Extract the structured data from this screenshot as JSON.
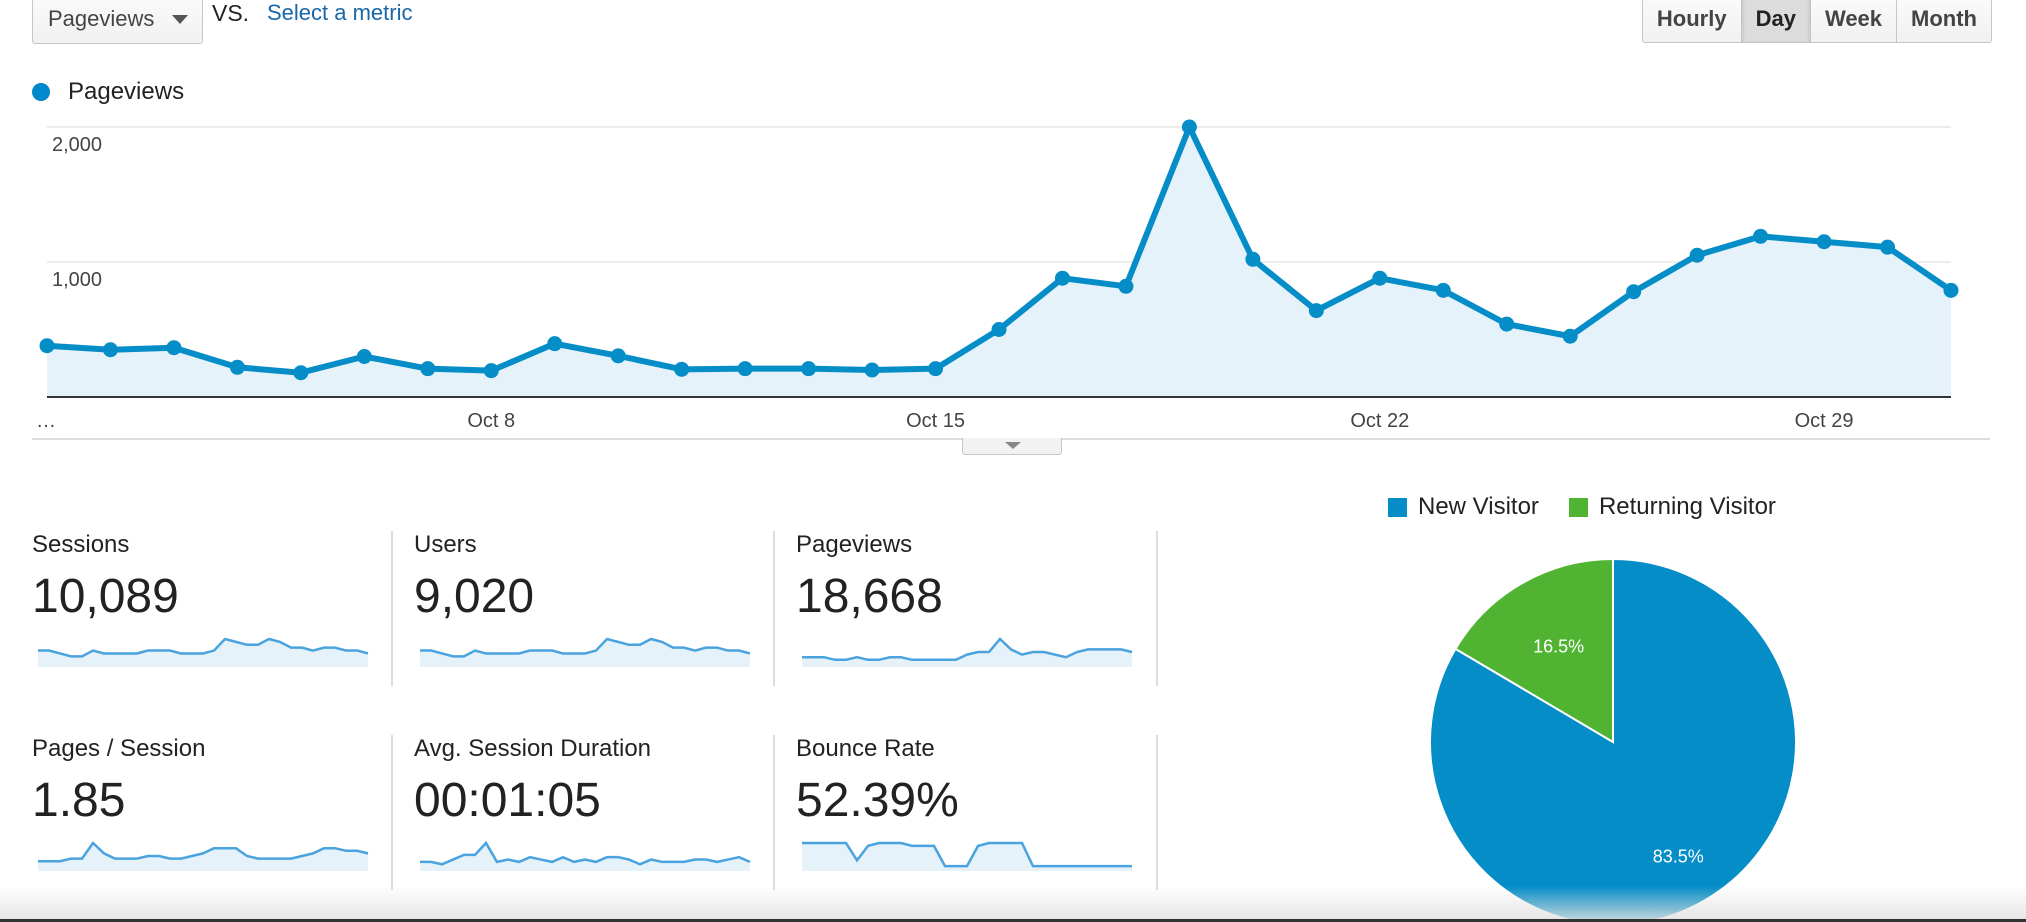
{
  "controls": {
    "metric_select": "Pageviews",
    "vs_label": "VS.",
    "select_metric_link": "Select a metric",
    "ranges": [
      "Hourly",
      "Day",
      "Week",
      "Month"
    ],
    "active_range": "Day"
  },
  "chart_data": {
    "type": "area",
    "series": [
      {
        "name": "Pageviews",
        "values": [
          380,
          350,
          365,
          220,
          180,
          300,
          210,
          195,
          395,
          305,
          205,
          210,
          210,
          200,
          210,
          500,
          880,
          820,
          2000,
          1020,
          640,
          880,
          790,
          540,
          450,
          780,
          1050,
          1190,
          1150,
          1110,
          790
        ]
      }
    ],
    "x_tick_labels": [
      "…",
      "Oct 8",
      "Oct 15",
      "Oct 22",
      "Oct 29"
    ],
    "y_tick_labels": [
      "2,000",
      "1,000"
    ],
    "y_ticks": [
      2000,
      1000
    ],
    "ylim": [
      0,
      2000
    ],
    "grid": true,
    "color": "#058dc7",
    "fill": "#e5f2fa"
  },
  "legend": {
    "main_series": "Pageviews"
  },
  "metrics": [
    {
      "label": "Sessions",
      "value": "10,089",
      "spark": [
        5,
        5,
        4,
        3,
        3,
        5,
        4,
        4,
        4,
        4,
        5,
        5,
        5,
        4,
        4,
        4,
        5,
        9,
        8,
        7,
        7,
        9,
        8,
        6,
        6,
        5,
        6,
        6,
        5,
        5,
        4
      ]
    },
    {
      "label": "Users",
      "value": "9,020",
      "spark": [
        5,
        5,
        4,
        3,
        3,
        5,
        4,
        4,
        4,
        4,
        5,
        5,
        5,
        4,
        4,
        4,
        5,
        9,
        8,
        7,
        7,
        9,
        8,
        6,
        6,
        5,
        6,
        6,
        5,
        5,
        4
      ]
    },
    {
      "label": "Pageviews",
      "value": "18,668",
      "spark": [
        3,
        3,
        3,
        2,
        2,
        3,
        2,
        2,
        3,
        3,
        2,
        2,
        2,
        2,
        2,
        4,
        5,
        5,
        10,
        6,
        4,
        5,
        5,
        4,
        3,
        5,
        6,
        6,
        6,
        6,
        5
      ]
    },
    {
      "label": "Pages / Session",
      "value": "1.85",
      "spark": [
        3,
        3,
        3,
        4,
        4,
        10,
        6,
        4,
        4,
        4,
        5,
        5,
        4,
        4,
        5,
        6,
        8,
        8,
        8,
        5,
        4,
        4,
        4,
        4,
        5,
        6,
        8,
        8,
        7,
        7,
        6
      ]
    },
    {
      "label": "Avg. Session Duration",
      "value": "00:01:05",
      "spark": [
        3,
        3,
        2,
        4,
        6,
        6,
        11,
        3,
        4,
        3,
        5,
        4,
        3,
        5,
        3,
        4,
        3,
        5,
        5,
        4,
        2,
        4,
        3,
        3,
        3,
        4,
        4,
        3,
        4,
        5,
        3
      ]
    },
    {
      "label": "Bounce Rate",
      "value": "52.39%",
      "spark": [
        9,
        9,
        9,
        9,
        9,
        3,
        8,
        9,
        9,
        9,
        8,
        8,
        8,
        1,
        1,
        1,
        8,
        9,
        9,
        9,
        9,
        1,
        1,
        1,
        1,
        1,
        1,
        1,
        1,
        1,
        1
      ]
    }
  ],
  "pie": {
    "segments": [
      {
        "name": "New Visitor",
        "value": 83.5,
        "label": "83.5%",
        "color": "#058dc7"
      },
      {
        "name": "Returning Visitor",
        "value": 16.5,
        "label": "16.5%",
        "color": "#50b432"
      }
    ]
  }
}
